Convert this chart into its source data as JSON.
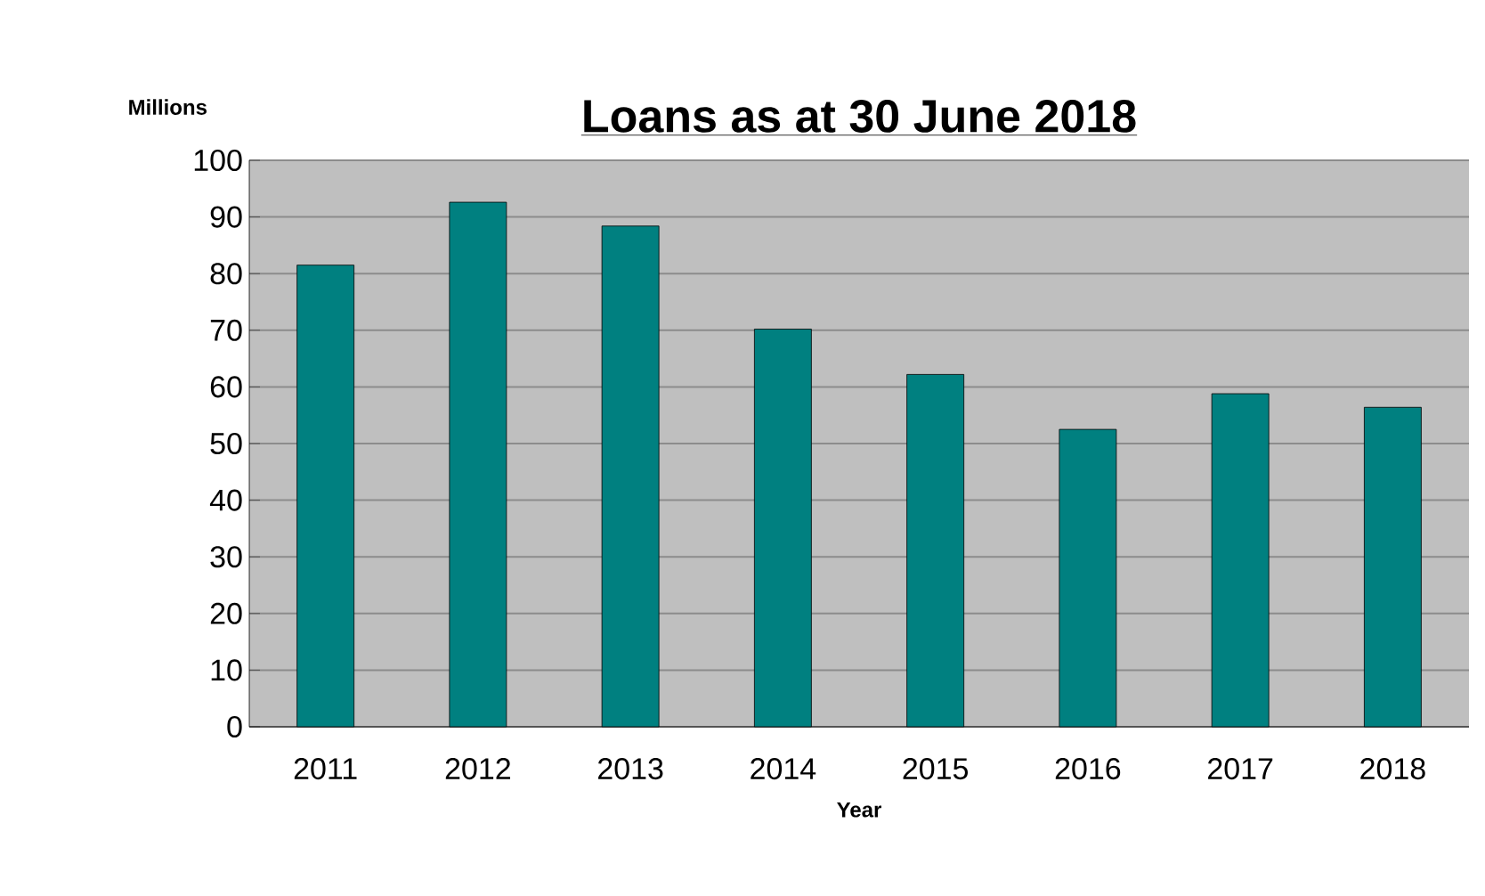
{
  "chart_data": {
    "type": "bar",
    "title": "Loans as at 30 June 2018",
    "ylabel": "Millions",
    "xlabel": "Year",
    "categories": [
      "2011",
      "2012",
      "2013",
      "2014",
      "2015",
      "2016",
      "2017",
      "2018"
    ],
    "values": [
      81.5,
      92.6,
      88.4,
      70.2,
      62.2,
      52.5,
      58.8,
      56.4
    ],
    "color": "#008080",
    "ylim": [
      0,
      100
    ],
    "yticks": [
      0,
      10,
      20,
      30,
      40,
      50,
      60,
      70,
      80,
      90,
      100
    ],
    "grid": "y"
  }
}
